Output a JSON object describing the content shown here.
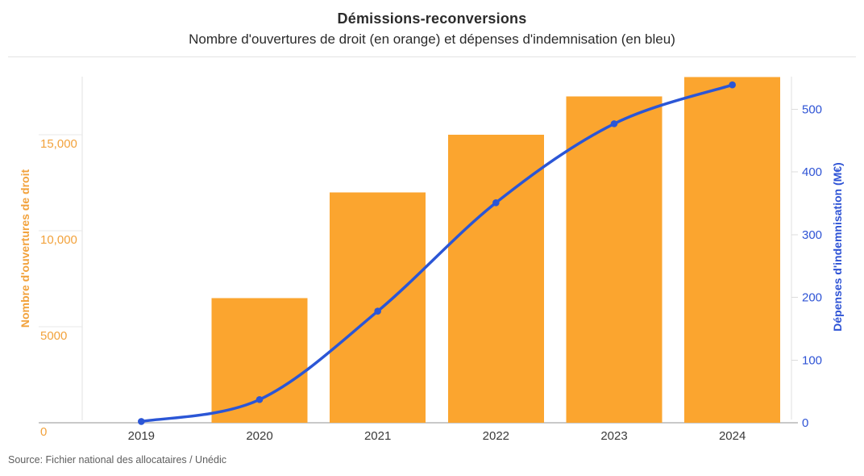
{
  "header": {
    "title": "Démissions-reconversions",
    "subtitle": "Nombre d'ouvertures de droit (en orange) et dépenses d'indemnisation (en bleu)"
  },
  "footer": {
    "source": "Source: Fichier national des allocataires / Unédic"
  },
  "colors": {
    "bar_orange": "#FBA52F",
    "orange_text": "#F2A23C",
    "line_blue": "#2B56D6",
    "blue_text": "#2E53D5",
    "title_text": "#2B2B2B",
    "x_tick_text": "#3A3A3A",
    "axis_line": "#E0E0E0",
    "baseline": "#C9C9C9",
    "source_text": "#5E5E5E"
  },
  "chart_data": [
    {
      "type": "bar",
      "name": "Nombre d'ouvertures de droit",
      "categories": [
        "2019",
        "2020",
        "2021",
        "2022",
        "2023",
        "2024"
      ],
      "values": [
        0,
        6500,
        12000,
        15000,
        17000,
        18000
      ],
      "axis": "left",
      "ylabel": "Nombre d'ouvertures de droit",
      "ylim": [
        0,
        18000
      ],
      "yticks": [
        0,
        5000,
        10000,
        15000
      ],
      "ytick_labels": [
        "0",
        "5000",
        "10,000",
        "15,000"
      ],
      "color": "#FBA52F",
      "grid": false
    },
    {
      "type": "line",
      "name": "Dépenses d'indemnisation (M€)",
      "categories": [
        "2019",
        "2020",
        "2021",
        "2022",
        "2023",
        "2024"
      ],
      "values": [
        2,
        37,
        178,
        351,
        477,
        539
      ],
      "axis": "right",
      "ylabel": "Dépenses d'indemnisation (M€)",
      "ylim": [
        0,
        552
      ],
      "yticks": [
        0,
        100,
        200,
        300,
        400,
        500
      ],
      "ytick_labels": [
        "0",
        "100",
        "200",
        "300",
        "400",
        "500"
      ],
      "color": "#2B56D6",
      "marker": "circle",
      "smooth": true,
      "legend_position": "none"
    }
  ]
}
